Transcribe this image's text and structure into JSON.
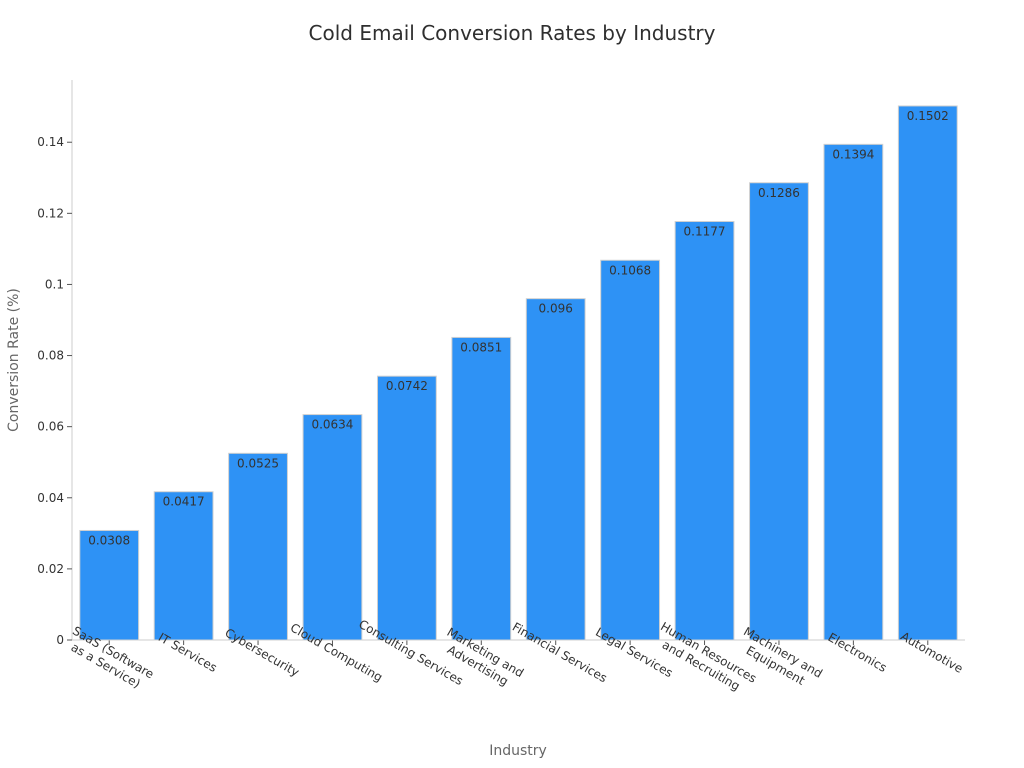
{
  "chart_data": {
    "type": "bar",
    "title": "Cold Email Conversion Rates by Industry",
    "xlabel": "Industry",
    "ylabel": "Conversion Rate (%)",
    "categories": [
      "SaaS (Software as a Service)",
      "IT Services",
      "Cybersecurity",
      "Cloud Computing",
      "Consulting Services",
      "Marketing and Advertising",
      "Financial Services",
      "Legal Services",
      "Human Resources and Recruiting",
      "Machinery and Equipment",
      "Electronics",
      "Automotive"
    ],
    "category_lines": [
      [
        "SaaS (Software",
        "as a Service)"
      ],
      [
        "IT Services"
      ],
      [
        "Cybersecurity"
      ],
      [
        "Cloud Computing"
      ],
      [
        "Consulting Services"
      ],
      [
        "Marketing and",
        "Advertising"
      ],
      [
        "Financial Services"
      ],
      [
        "Legal Services"
      ],
      [
        "Human Resources",
        "and Recruiting"
      ],
      [
        "Machinery and",
        "Equipment"
      ],
      [
        "Electronics"
      ],
      [
        "Automotive"
      ]
    ],
    "values": [
      0.0308,
      0.0417,
      0.0525,
      0.0634,
      0.0742,
      0.0851,
      0.096,
      0.1068,
      0.1177,
      0.1286,
      0.1394,
      0.1502
    ],
    "value_labels": [
      "0.0308",
      "0.0417",
      "0.0525",
      "0.0634",
      "0.0742",
      "0.0851",
      "0.096",
      "0.1068",
      "0.1177",
      "0.1286",
      "0.1394",
      "0.1502"
    ],
    "ylim": [
      0,
      0.1575
    ],
    "yticks": [
      0,
      0.02,
      0.04,
      0.06,
      0.08,
      0.1,
      0.12,
      0.14
    ],
    "ytick_labels": [
      "0",
      "0.02",
      "0.04",
      "0.06",
      "0.08",
      "0.1",
      "0.12",
      "0.14"
    ],
    "bar_color": "#2e92f5",
    "grid": false,
    "legend": "none"
  }
}
